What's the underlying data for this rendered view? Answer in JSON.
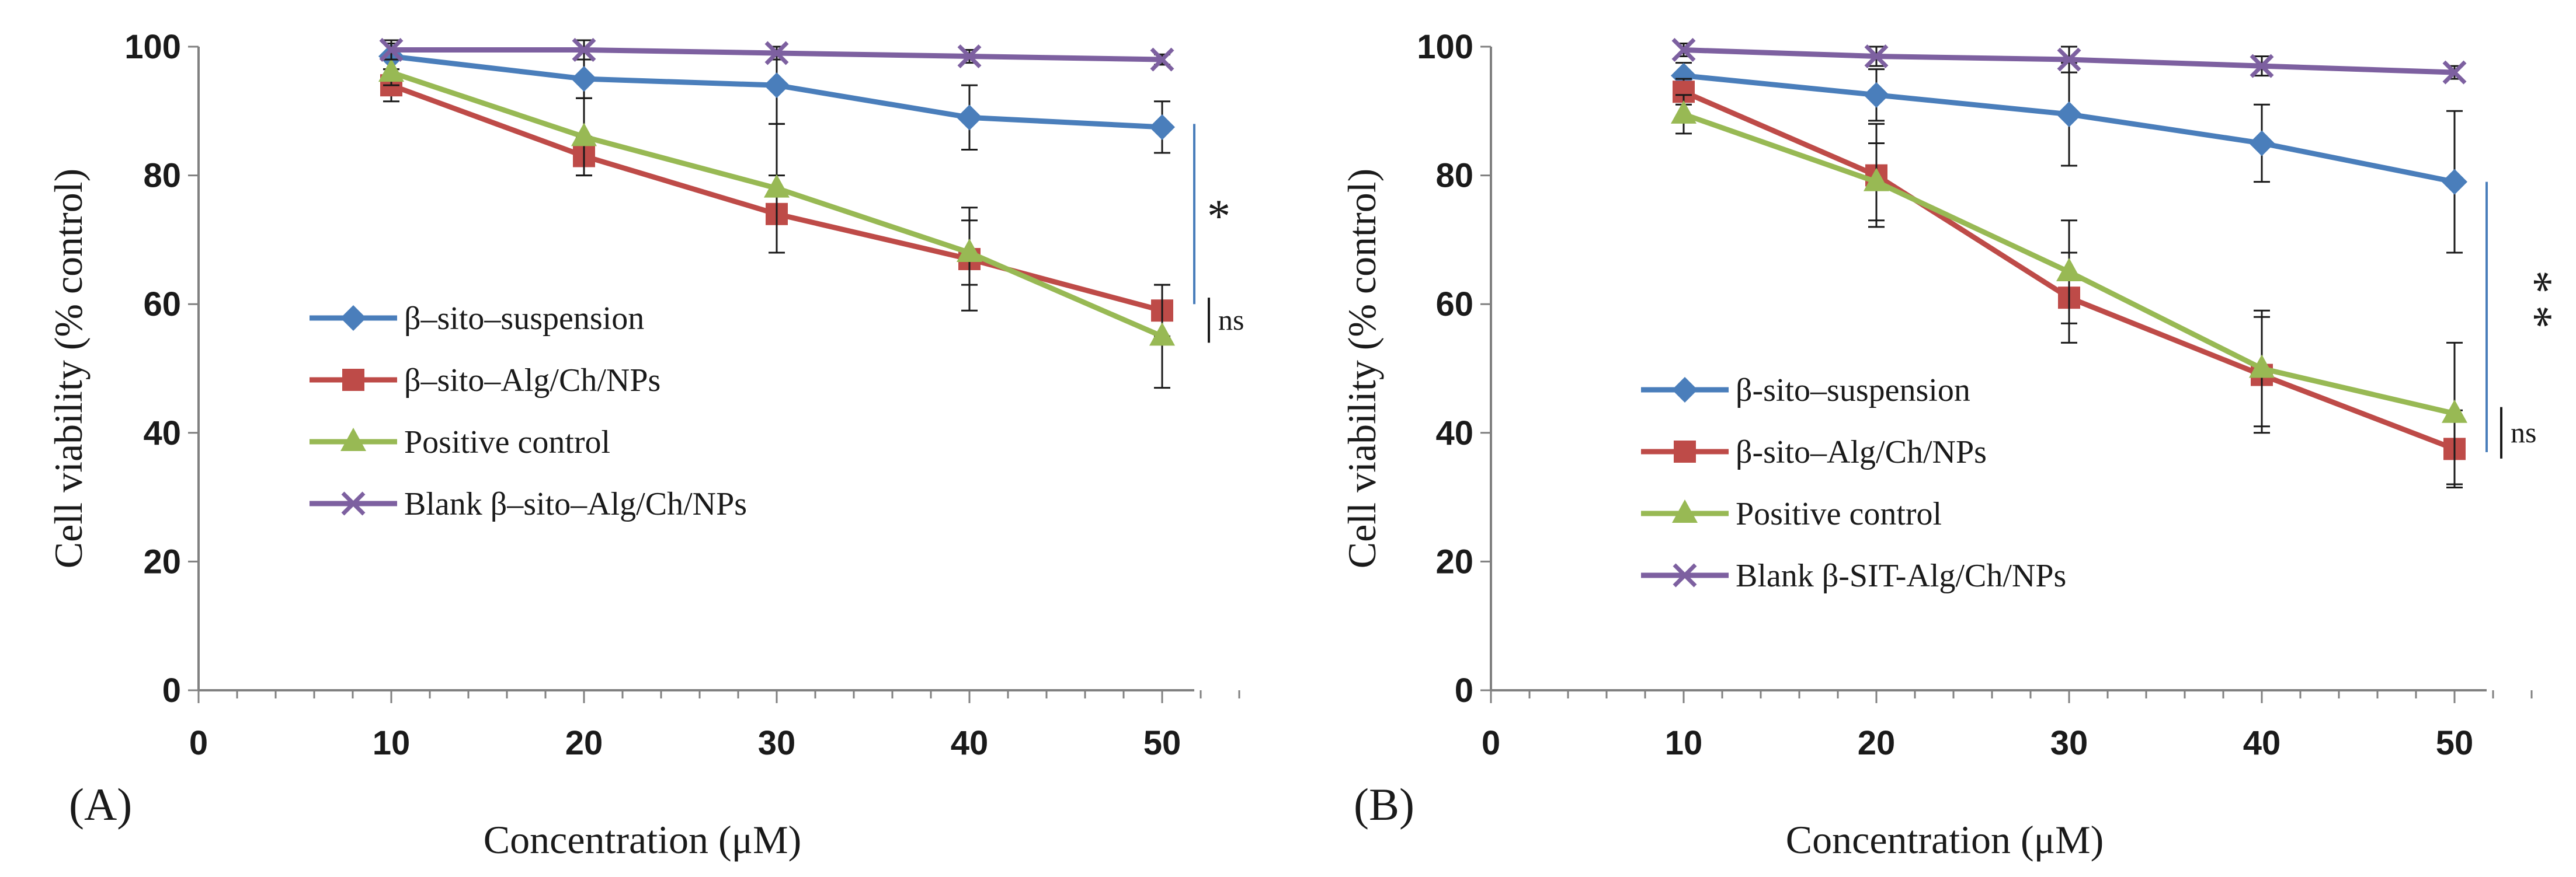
{
  "chart_data": [
    {
      "type": "line",
      "panel_label": "(A)",
      "xlabel": "Concentration (μM)",
      "ylabel": "Cell viability (% control)",
      "xlim": [
        0,
        50
      ],
      "ylim": [
        0,
        100
      ],
      "x_ticks": [
        "0",
        "10",
        "20",
        "30",
        "40",
        "50"
      ],
      "y_ticks": [
        "0",
        "20",
        "40",
        "60",
        "80",
        "100"
      ],
      "x": [
        10,
        20,
        30,
        40,
        50
      ],
      "series": [
        {
          "name": "β–sito–suspension",
          "color": "#4a7ebb",
          "marker": "diamond",
          "values": [
            98.5,
            95,
            94,
            89,
            87.5
          ],
          "errors": [
            2,
            3,
            6,
            5,
            4
          ]
        },
        {
          "name": "β–sito–Alg/Ch/NPs",
          "color": "#be4b48",
          "marker": "square",
          "values": [
            94,
            83,
            74,
            67,
            59
          ],
          "errors": [
            2.5,
            3,
            6,
            8,
            4
          ]
        },
        {
          "name": "Positive control",
          "color": "#98b954",
          "marker": "triangle",
          "values": [
            96,
            86,
            78,
            68,
            55
          ],
          "errors": [
            2,
            6,
            10,
            5,
            8
          ]
        },
        {
          "name": "Blank β–sito–Alg/Ch/NPs",
          "color": "#7d60a0",
          "marker": "x",
          "values": [
            99.5,
            99.5,
            99,
            98.5,
            98
          ],
          "errors": [
            1.5,
            1.5,
            1,
            1,
            0.8
          ]
        }
      ],
      "annotations": [
        {
          "text": "*",
          "between": "β–sito–suspension vs β–sito–Alg/Ch/NPs",
          "x": 50,
          "y_range": [
            60,
            88
          ]
        },
        {
          "text": "ns",
          "between": "β–sito–Alg/Ch/NPs vs Positive control",
          "x": 50,
          "y_range": [
            54,
            61
          ]
        }
      ]
    },
    {
      "type": "line",
      "panel_label": "(B)",
      "xlabel": "Concentration (μM)",
      "ylabel": "Cell viability (% control)",
      "xlim": [
        0,
        50
      ],
      "ylim": [
        0,
        100
      ],
      "x_ticks": [
        "0",
        "10",
        "20",
        "30",
        "40",
        "50"
      ],
      "y_ticks": [
        "0",
        "20",
        "40",
        "60",
        "80",
        "100"
      ],
      "x": [
        10,
        20,
        30,
        40,
        50
      ],
      "series": [
        {
          "name": "β-sito–suspension",
          "color": "#4a7ebb",
          "marker": "diamond",
          "values": [
            95.5,
            92.5,
            89.5,
            85,
            79
          ],
          "errors": [
            2,
            4,
            8,
            6,
            11
          ]
        },
        {
          "name": "β-sito–Alg/Ch/NPs",
          "color": "#be4b48",
          "marker": "square",
          "values": [
            93,
            80,
            61,
            49,
            37.5
          ],
          "errors": [
            2,
            8,
            7,
            9,
            6
          ]
        },
        {
          "name": "Positive control",
          "color": "#98b954",
          "marker": "triangle",
          "values": [
            89.5,
            79,
            65,
            50,
            43
          ],
          "errors": [
            3,
            6,
            8,
            9,
            11
          ]
        },
        {
          "name": "Blank β-SIT-Alg/Ch/NPs",
          "color": "#7d60a0",
          "marker": "x",
          "values": [
            99.5,
            98.5,
            98,
            97,
            96
          ],
          "errors": [
            1,
            1.5,
            2,
            1.5,
            1
          ]
        }
      ],
      "annotations": [
        {
          "text": "* *",
          "between": "β-sito–suspension vs β-sito–Alg/Ch/NPs",
          "x": 50,
          "y_range": [
            37,
            79
          ]
        },
        {
          "text": "ns",
          "between": "β-sito–Alg/Ch/NPs vs Positive control",
          "x": 50,
          "y_range": [
            36,
            44
          ]
        }
      ]
    }
  ]
}
